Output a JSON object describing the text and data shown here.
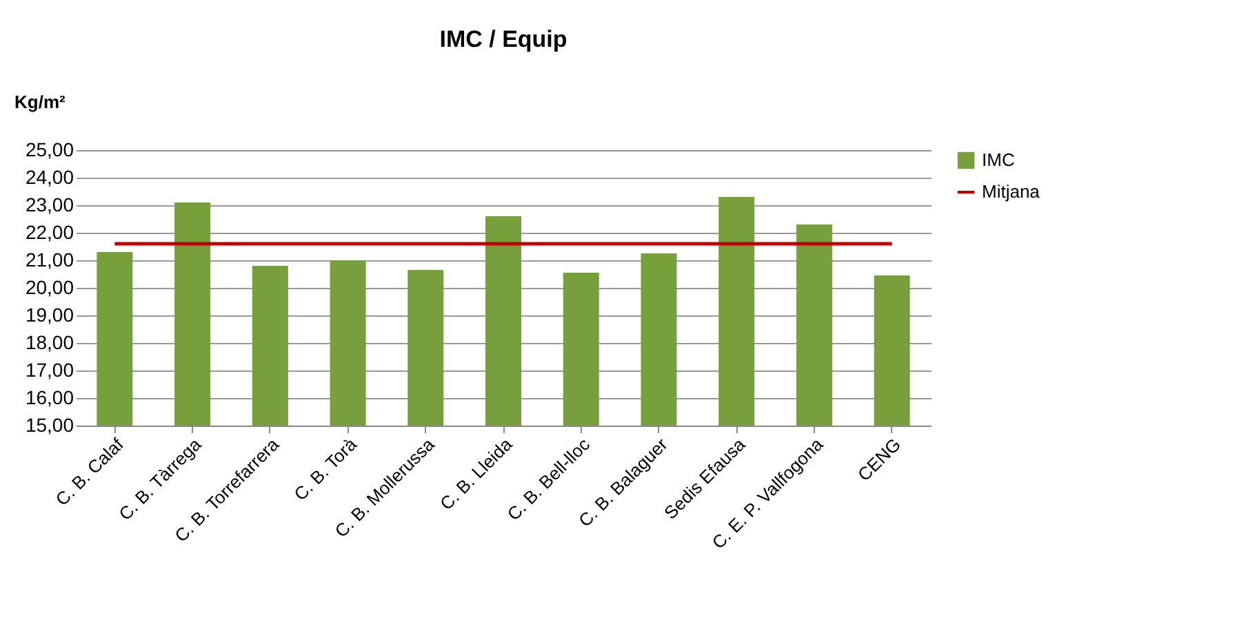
{
  "chart_data": {
    "type": "bar",
    "title": "IMC / Equip",
    "ylabel": "Kg/m²",
    "categories": [
      "C. B. Calaf",
      "C. B. Tàrrega",
      "C. B. Torrefarrera",
      "C. B. Torà",
      "C. B. Mollerussa",
      "C. B. Lleida",
      "C. B. Bell-lloc",
      "C. B. Balaguer",
      "Sedis Efausa",
      "C. E. P. Vallfogona",
      "CENG"
    ],
    "series": [
      {
        "name": "IMC",
        "color": "#77a03c",
        "values": [
          21.3,
          23.1,
          20.8,
          21.0,
          20.65,
          22.6,
          20.55,
          21.25,
          23.3,
          22.3,
          20.45
        ]
      },
      {
        "name": "Mitjana",
        "type": "line",
        "color": "#c00000",
        "values": [
          21.6,
          21.6,
          21.6,
          21.6,
          21.6,
          21.6,
          21.6,
          21.6,
          21.6,
          21.6,
          21.6
        ]
      }
    ],
    "ylim": [
      15,
      25
    ],
    "yticks": [
      {
        "value": 15,
        "label": "15,00"
      },
      {
        "value": 16,
        "label": "16,00"
      },
      {
        "value": 17,
        "label": "17,00"
      },
      {
        "value": 18,
        "label": "18,00"
      },
      {
        "value": 19,
        "label": "19,00"
      },
      {
        "value": 20,
        "label": "20,00"
      },
      {
        "value": 21,
        "label": "21,00"
      },
      {
        "value": 22,
        "label": "22,00"
      },
      {
        "value": 23,
        "label": "23,00"
      },
      {
        "value": 24,
        "label": "24,00"
      },
      {
        "value": 25,
        "label": "25,00"
      }
    ],
    "grid": "y",
    "legend": "right"
  }
}
